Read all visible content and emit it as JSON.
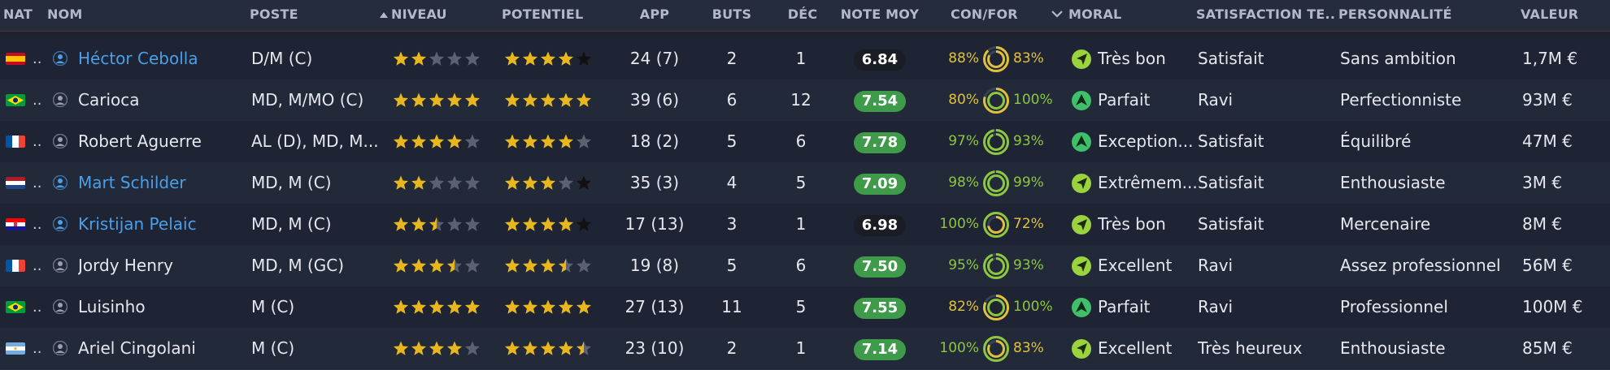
{
  "headers": {
    "nat": "NAT",
    "nom": "NOM",
    "poste": "POSTE",
    "niveau": "NIVEAU",
    "niveau_sort_icon": "triangle-up-icon",
    "potentiel": "POTENTIEL",
    "app": "APP",
    "buts": "BUTS",
    "dec": "DÉC",
    "note_moy": "NOTE MOY",
    "con_for": "CON/FOR",
    "moral_sort_icon": "chevron-down-icon",
    "moral": "MORAL",
    "satisfaction": "SATISFACTION TE...",
    "personnalite": "PERSONNALITÉ",
    "valeur": "VALEUR"
  },
  "colors": {
    "link_blue": "#4a9fe8",
    "note_green": "#3e9b4a",
    "note_dark": "#1a1d24",
    "pct_green": "#8dc63f",
    "pct_yellow": "#e0c23a",
    "star_gold": "#e8b71f",
    "star_empty": "#5b6170",
    "star_black": "#111111"
  },
  "players": [
    {
      "flag": "spain",
      "nat_short": "..",
      "name": "Héctor Cebolla",
      "highlight": true,
      "poste": "D/M (C)",
      "niveau": 2,
      "potentiel": 4,
      "potentiel_black_star": true,
      "app": "24 (7)",
      "buts": "2",
      "dec": "1",
      "note": "6.84",
      "note_style": "dark",
      "con": "88%",
      "con_color": "yellow",
      "ring_con": 0.88,
      "for": "83%",
      "for_color": "yellow",
      "ring_for": 0.83,
      "moral_icon": "arrow-up-right-icon",
      "moral": "Très bon",
      "satisfaction": "Satisfait",
      "personnalite": "Sans ambition",
      "valeur": "1,7M €"
    },
    {
      "flag": "brazil",
      "nat_short": "..",
      "name": "Carioca",
      "highlight": false,
      "poste": "MD, M/MO (C)",
      "niveau": 5,
      "potentiel": 5,
      "potentiel_black_star": false,
      "app": "39 (6)",
      "buts": "6",
      "dec": "12",
      "note": "7.54",
      "note_style": "green",
      "con": "80%",
      "con_color": "yellow",
      "ring_con": 0.8,
      "for": "100%",
      "for_color": "green",
      "ring_for": 1.0,
      "moral_icon": "arrow-up-icon",
      "moral": "Parfait",
      "satisfaction": "Ravi",
      "personnalite": "Perfectionniste",
      "valeur": "93M €"
    },
    {
      "flag": "france",
      "nat_short": "..",
      "name": "Robert Aguerre",
      "highlight": false,
      "poste": "AL (D), MD, M...",
      "niveau": 4,
      "potentiel": 4,
      "potentiel_black_star": false,
      "app": "18 (2)",
      "buts": "5",
      "dec": "6",
      "note": "7.78",
      "note_style": "green",
      "con": "97%",
      "con_color": "green",
      "ring_con": 0.97,
      "for": "93%",
      "for_color": "green",
      "ring_for": 0.93,
      "moral_icon": "arrow-up-icon",
      "moral": "Exception...",
      "satisfaction": "Satisfait",
      "personnalite": "Équilibré",
      "valeur": "47M €"
    },
    {
      "flag": "netherlands",
      "nat_short": "..",
      "name": "Mart Schilder",
      "highlight": true,
      "poste": "MD, M (C)",
      "niveau": 2,
      "potentiel": 3,
      "potentiel_black_star": true,
      "app": "35 (3)",
      "buts": "4",
      "dec": "5",
      "note": "7.09",
      "note_style": "green",
      "con": "98%",
      "con_color": "green",
      "ring_con": 0.98,
      "for": "99%",
      "for_color": "green",
      "ring_for": 0.99,
      "moral_icon": "arrow-up-right-icon",
      "moral": "Extrêmem...",
      "satisfaction": "Satisfait",
      "personnalite": "Enthousiaste",
      "valeur": "3M €"
    },
    {
      "flag": "croatia",
      "nat_short": "..",
      "name": "Kristijan Pelaic",
      "highlight": true,
      "poste": "MD, M (C)",
      "niveau": 2.5,
      "potentiel": 4,
      "potentiel_black_star": true,
      "app": "17 (13)",
      "buts": "3",
      "dec": "1",
      "note": "6.98",
      "note_style": "dark",
      "con": "100%",
      "con_color": "green",
      "ring_con": 1.0,
      "for": "72%",
      "for_color": "yellow",
      "ring_for": 0.72,
      "moral_icon": "arrow-up-right-icon",
      "moral": "Très bon",
      "satisfaction": "Satisfait",
      "personnalite": "Mercenaire",
      "valeur": "8M €"
    },
    {
      "flag": "france",
      "nat_short": "..",
      "name": "Jordy Henry",
      "highlight": false,
      "poste": "MD, M (GC)",
      "niveau": 3.5,
      "potentiel": 3.5,
      "potentiel_black_star": false,
      "app": "19 (8)",
      "buts": "5",
      "dec": "6",
      "note": "7.50",
      "note_style": "green",
      "con": "95%",
      "con_color": "green",
      "ring_con": 0.95,
      "for": "93%",
      "for_color": "green",
      "ring_for": 0.93,
      "moral_icon": "arrow-up-right-icon",
      "moral": "Excellent",
      "satisfaction": "Ravi",
      "personnalite": "Assez professionnel",
      "valeur": "56M €"
    },
    {
      "flag": "brazil",
      "nat_short": "..",
      "name": "Luisinho",
      "highlight": false,
      "poste": "M (C)",
      "niveau": 5,
      "potentiel": 5,
      "potentiel_black_star": false,
      "app": "27 (13)",
      "buts": "11",
      "dec": "5",
      "note": "7.55",
      "note_style": "green",
      "con": "82%",
      "con_color": "yellow",
      "ring_con": 0.82,
      "for": "100%",
      "for_color": "green",
      "ring_for": 1.0,
      "moral_icon": "arrow-up-icon",
      "moral": "Parfait",
      "satisfaction": "Ravi",
      "personnalite": "Professionnel",
      "valeur": "100M €"
    },
    {
      "flag": "argentina",
      "nat_short": "..",
      "name": "Ariel Cingolani",
      "highlight": false,
      "poste": "M (C)",
      "niveau": 4,
      "potentiel": 4.5,
      "potentiel_black_star": false,
      "app": "23 (10)",
      "buts": "2",
      "dec": "1",
      "note": "7.14",
      "note_style": "green",
      "con": "100%",
      "con_color": "green",
      "ring_con": 1.0,
      "for": "83%",
      "for_color": "yellow",
      "ring_for": 0.83,
      "moral_icon": "arrow-up-right-icon",
      "moral": "Excellent",
      "satisfaction": "Très heureux",
      "personnalite": "Enthousiaste",
      "valeur": "85M €"
    }
  ]
}
